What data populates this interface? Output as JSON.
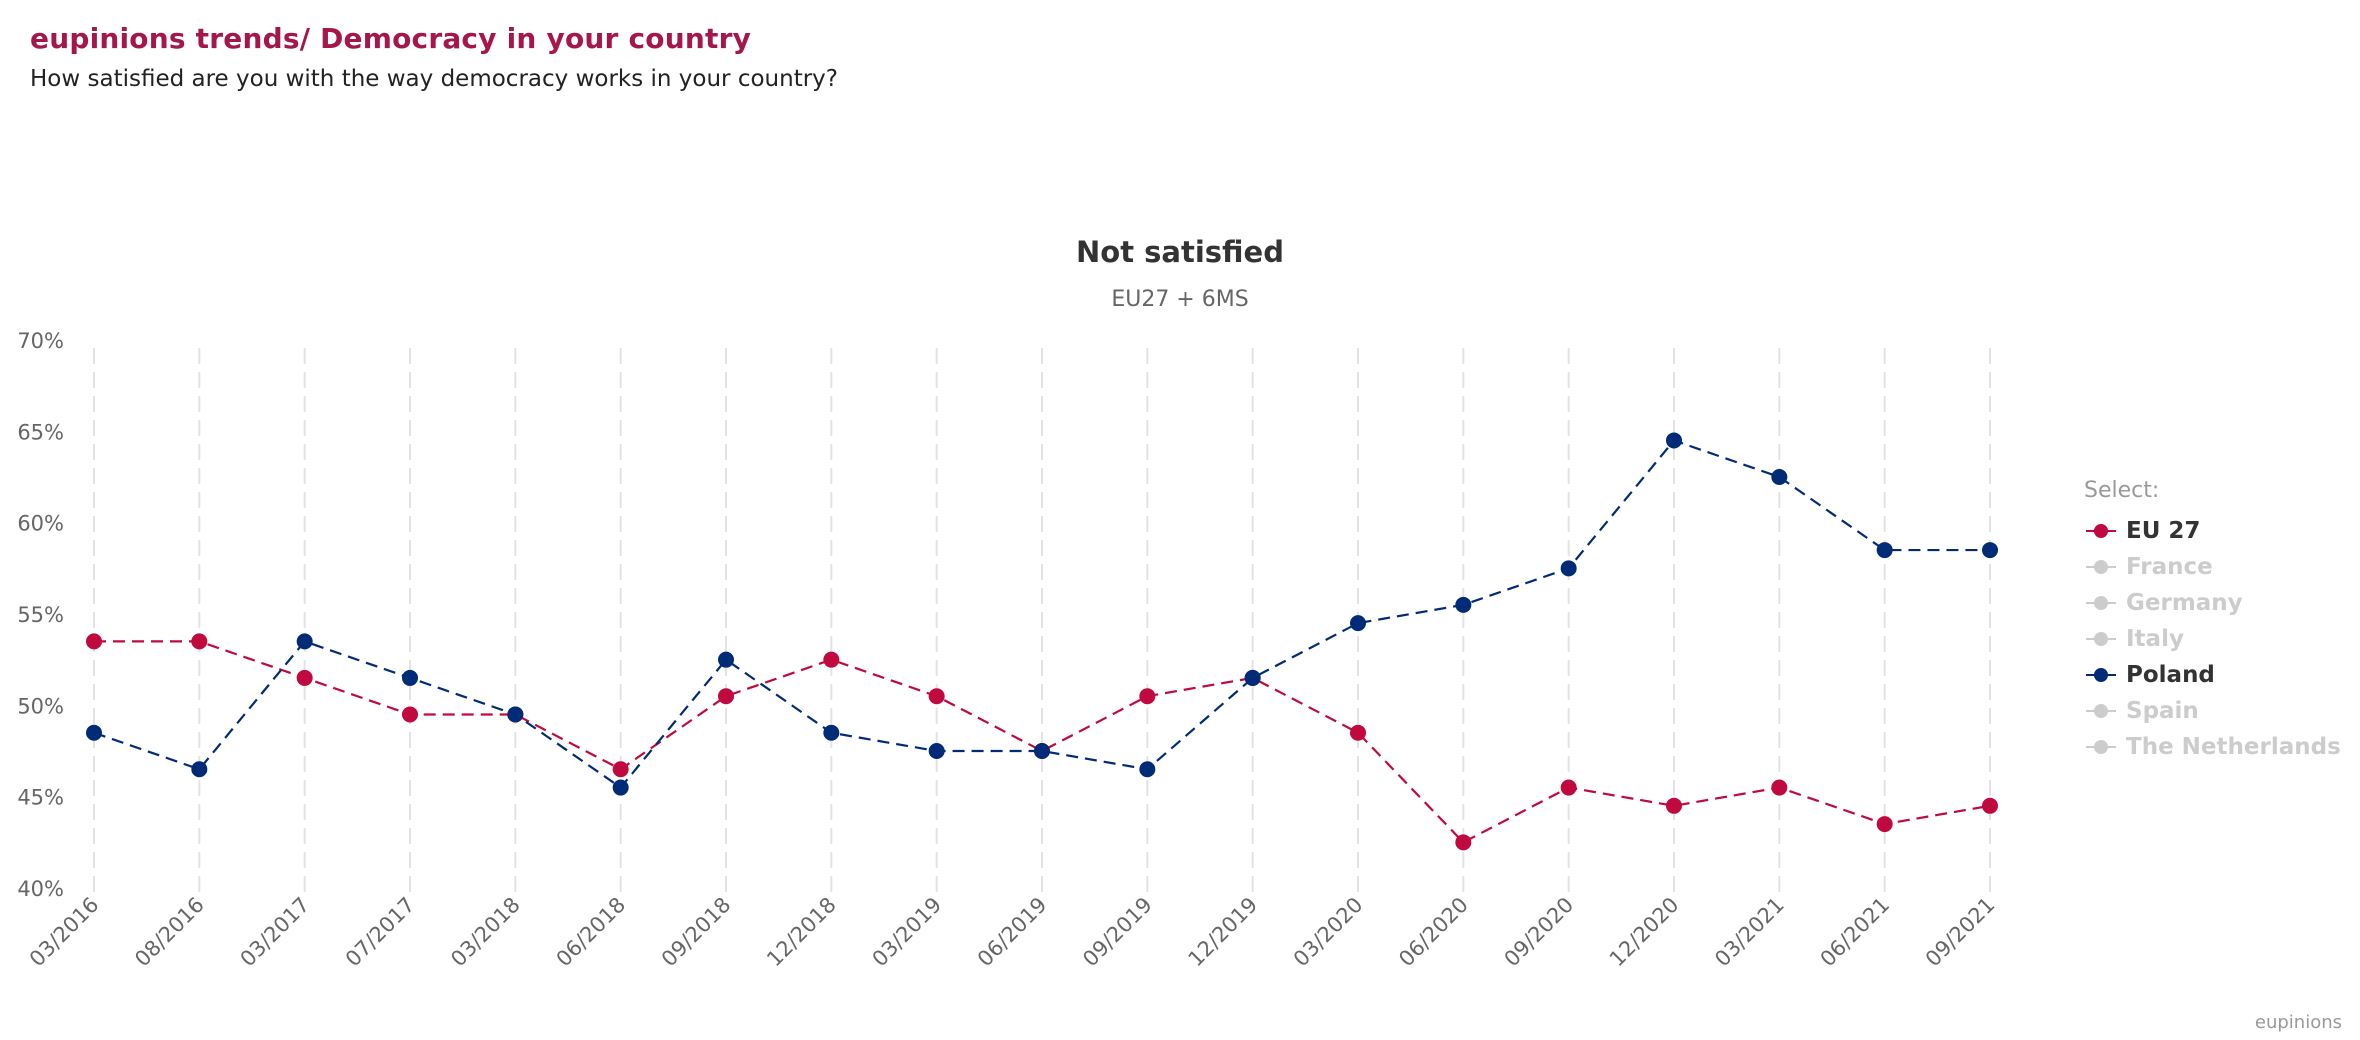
{
  "header": {
    "title": "eupinions trends/ Democracy in your country",
    "subtitle": "How satisfied are you with the way democracy works in your country?"
  },
  "credit": "eupinions",
  "chart_data": {
    "type": "line",
    "title": "Not satisfied",
    "subtitle": "EU27 + 6MS",
    "xlabel": "",
    "ylabel": "",
    "ylim": [
      40,
      70
    ],
    "yticks": [
      40,
      45,
      50,
      55,
      60,
      65,
      70
    ],
    "ytick_labels": [
      "40%",
      "45%",
      "50%",
      "55%",
      "60%",
      "65%",
      "70%"
    ],
    "grid": "vertical dashed",
    "x": [
      "03/2016",
      "08/2016",
      "03/2017",
      "07/2017",
      "03/2018",
      "06/2018",
      "09/2018",
      "12/2018",
      "03/2019",
      "06/2019",
      "09/2019",
      "12/2019",
      "03/2020",
      "06/2020",
      "09/2020",
      "12/2020",
      "03/2021",
      "06/2021",
      "09/2021"
    ],
    "series": [
      {
        "name": "EU 27",
        "color": "#c0093e",
        "visible": true,
        "values": [
          53.5,
          53.5,
          51.5,
          49.5,
          49.5,
          46.5,
          50.5,
          52.5,
          50.5,
          47.5,
          50.5,
          51.5,
          48.5,
          42.5,
          45.5,
          44.5,
          45.5,
          43.5,
          44.5
        ]
      },
      {
        "name": "Poland",
        "color": "#002b76",
        "visible": true,
        "values": [
          48.5,
          46.5,
          53.5,
          51.5,
          49.5,
          45.5,
          52.5,
          48.5,
          47.5,
          47.5,
          46.5,
          51.5,
          54.5,
          55.5,
          57.5,
          64.5,
          62.5,
          58.5,
          58.5
        ]
      }
    ],
    "legend": {
      "title": "Select:",
      "placement": "right",
      "items": [
        {
          "label": "EU 27",
          "active": true,
          "color": "#c0093e"
        },
        {
          "label": "France",
          "active": false,
          "color": "#cccccc"
        },
        {
          "label": "Germany",
          "active": false,
          "color": "#cccccc"
        },
        {
          "label": "Italy",
          "active": false,
          "color": "#cccccc"
        },
        {
          "label": "Poland",
          "active": true,
          "color": "#002b76"
        },
        {
          "label": "Spain",
          "active": false,
          "color": "#cccccc"
        },
        {
          "label": "The Netherlands",
          "active": false,
          "color": "#cccccc"
        }
      ]
    }
  }
}
